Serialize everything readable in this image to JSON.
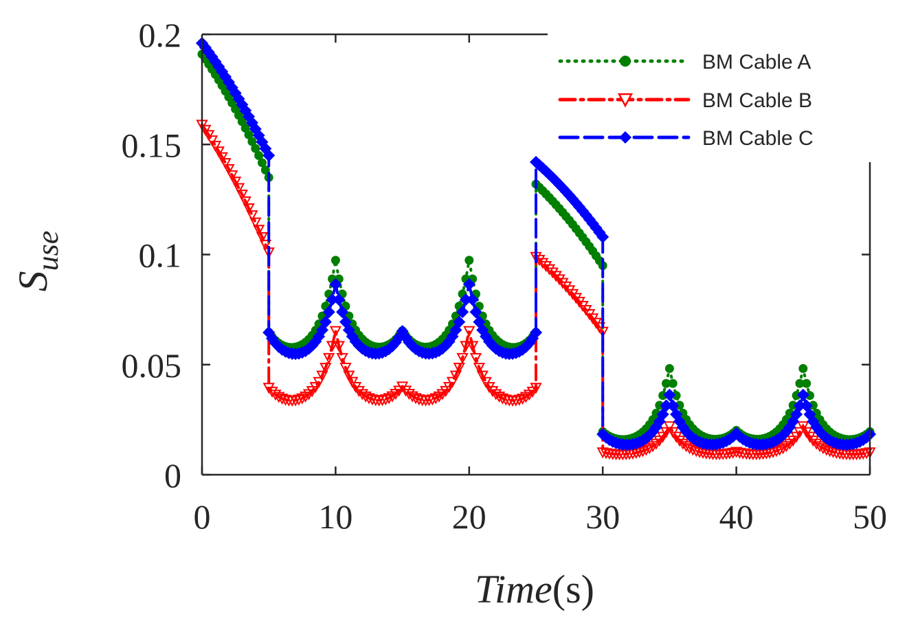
{
  "chart_data": {
    "type": "line",
    "title": "",
    "xlabel": {
      "italic": "Time",
      "unit": "(s)"
    },
    "ylabel": {
      "main": "S",
      "subscript": "use"
    },
    "xlim": [
      0,
      50
    ],
    "ylim": [
      0,
      0.2
    ],
    "xticks": [
      0,
      10,
      20,
      30,
      40,
      50
    ],
    "xtick_labels": [
      "0",
      "10",
      "20",
      "30",
      "40",
      "50"
    ],
    "yticks": [
      0,
      0.05,
      0.1,
      0.15,
      0.2
    ],
    "ytick_labels": [
      "0",
      "0.05",
      "0.1",
      "0.15",
      "0.2"
    ],
    "grid": false,
    "legend_position": "top-right",
    "sample_step": 0.25,
    "series": [
      {
        "name": "BM Cable A",
        "color": "#007f00",
        "line_style": "dotted",
        "marker": "circle",
        "phases": [
          {
            "t0": 0,
            "t1": 5,
            "kind": "decay",
            "start": 0.191,
            "end": 0.135
          },
          {
            "t0": 5,
            "t1": 25,
            "kind": "osc",
            "base": 0.052,
            "big": 0.045,
            "small": 0.012,
            "w": 1.2
          },
          {
            "t0": 25,
            "t1": 30,
            "kind": "decay",
            "start": 0.132,
            "end": 0.095
          },
          {
            "t0": 30,
            "t1": 50,
            "kind": "osc",
            "base": 0.012,
            "big": 0.036,
            "small": 0.007,
            "w": 1.2
          }
        ]
      },
      {
        "name": "BM Cable B",
        "color": "#ff0000",
        "line_style": "dashdot",
        "marker": "triangle-down",
        "phases": [
          {
            "t0": 0,
            "t1": 5,
            "kind": "decay",
            "start": 0.159,
            "end": 0.101
          },
          {
            "t0": 5,
            "t1": 25,
            "kind": "osc",
            "base": 0.029,
            "big": 0.036,
            "small": 0.01,
            "w": 1.2
          },
          {
            "t0": 25,
            "t1": 30,
            "kind": "decay",
            "start": 0.099,
            "end": 0.065
          },
          {
            "t0": 30,
            "t1": 50,
            "kind": "osc",
            "base": 0.008,
            "big": 0.014,
            "small": 0.002,
            "w": 1.2
          }
        ]
      },
      {
        "name": "BM Cable C",
        "color": "#0000ff",
        "line_style": "dashed",
        "marker": "x-diamond",
        "phases": [
          {
            "t0": 0,
            "t1": 5,
            "kind": "decay",
            "start": 0.196,
            "end": 0.145
          },
          {
            "t0": 5,
            "t1": 25,
            "kind": "osc",
            "base": 0.049,
            "big": 0.037,
            "small": 0.015,
            "w": 1.2
          },
          {
            "t0": 25,
            "t1": 30,
            "kind": "decay",
            "start": 0.142,
            "end": 0.108
          },
          {
            "t0": 30,
            "t1": 50,
            "kind": "osc",
            "base": 0.01,
            "big": 0.026,
            "small": 0.008,
            "w": 1.2
          }
        ]
      }
    ]
  }
}
